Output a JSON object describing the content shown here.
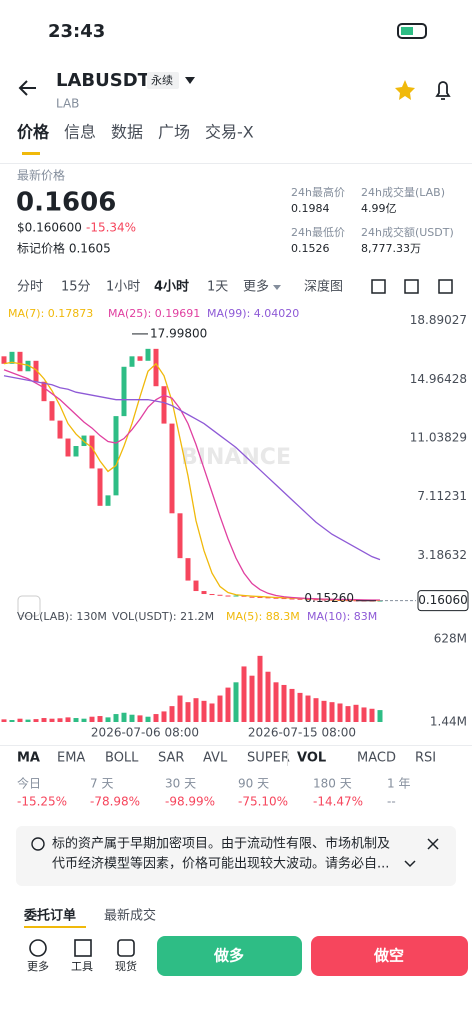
{
  "status": {
    "time": "23:43"
  },
  "header": {
    "symbol": "LABUSDT",
    "tag": "永续",
    "base": "LAB"
  },
  "tabs": [
    "价格",
    "信息",
    "数据",
    "广场",
    "交易-X"
  ],
  "price": {
    "label": "最新价格",
    "last": "0.1606",
    "usd": "$0.160600",
    "change": "-15.34%",
    "mark_label": "标记价格 0.1605"
  },
  "stats": [
    {
      "label": "24h最高价",
      "value": "0.1984"
    },
    {
      "label": "24h成交量(LAB)",
      "value": "4.99亿"
    },
    {
      "label": "24h最低价",
      "value": "0.1526"
    },
    {
      "label": "24h成交额(USDT)",
      "value": "8,777.33万"
    }
  ],
  "intervals": [
    "分时",
    "15分",
    "1小时",
    "4小时",
    "1天",
    "更多",
    "深度图"
  ],
  "chart_data": {
    "type": "candlestick",
    "watermark": "BINANCE",
    "open": [
      16.5,
      16.0,
      16.8,
      15.5,
      16.2,
      14.8,
      13.5,
      12.2,
      11.0,
      9.8,
      10.5,
      11.2,
      9.0,
      6.5,
      7.2,
      12.5,
      15.8,
      16.5,
      16.2,
      17.0,
      14.5,
      12.0,
      6.0,
      3.0,
      1.5,
      0.8,
      0.6,
      0.55,
      0.5,
      0.45,
      0.5,
      0.42,
      0.4,
      0.38,
      0.35,
      0.33,
      0.3,
      0.28,
      0.27,
      0.25,
      0.24,
      0.22,
      0.2,
      0.19,
      0.18,
      0.17,
      0.165,
      0.16
    ],
    "close": [
      16.0,
      16.8,
      15.5,
      16.2,
      14.8,
      13.5,
      12.2,
      11.0,
      9.8,
      10.5,
      11.2,
      9.0,
      6.5,
      7.2,
      12.5,
      15.8,
      16.5,
      16.2,
      17.0,
      14.5,
      12.0,
      6.0,
      3.0,
      1.5,
      0.8,
      0.6,
      0.55,
      0.5,
      0.45,
      0.5,
      0.42,
      0.4,
      0.38,
      0.35,
      0.33,
      0.3,
      0.28,
      0.27,
      0.25,
      0.24,
      0.22,
      0.2,
      0.19,
      0.18,
      0.17,
      0.165,
      0.16,
      0.1606
    ],
    "up_color": "#2ebd85",
    "down_color": "#f6465d",
    "series": [
      {
        "name": "MA(7): 0.17873",
        "color": "#f0b90b",
        "values": [
          16,
          16.1,
          16,
          15.9,
          15.6,
          15,
          14.2,
          13.2,
          12,
          11.3,
          10.8,
          10.4,
          9.5,
          8.8,
          9.2,
          10.5,
          12,
          13.8,
          15.5,
          16,
          15.2,
          13.5,
          11,
          8.5,
          5.5,
          3.5,
          2,
          1.1,
          0.7,
          0.55,
          0.5,
          0.46,
          0.43,
          0.4,
          0.37,
          0.35,
          0.33,
          0.31,
          0.29,
          0.27,
          0.25,
          0.23,
          0.21,
          0.2,
          0.19,
          0.18,
          0.17,
          0.17
        ]
      },
      {
        "name": "MA(25): 0.19691",
        "color": "#e040a0",
        "values": [
          15.6,
          15.4,
          15.2,
          15,
          14.7,
          14.4,
          14,
          13.6,
          13.1,
          12.6,
          12.1,
          11.7,
          11.2,
          10.8,
          10.7,
          11,
          11.6,
          12.3,
          13.1,
          13.6,
          13.9,
          13.7,
          13,
          12,
          10.6,
          9,
          7.4,
          5.8,
          4.3,
          3,
          2,
          1.3,
          0.9,
          0.65,
          0.5,
          0.42,
          0.37,
          0.33,
          0.3,
          0.28,
          0.26,
          0.25,
          0.24,
          0.23,
          0.22,
          0.21,
          0.2,
          0.2
        ]
      },
      {
        "name": "MA(99): 4.04020",
        "color": "#8e5ad6",
        "values": [
          15.2,
          15.1,
          15,
          14.9,
          14.8,
          14.7,
          14.6,
          14.4,
          14.3,
          14.1,
          14,
          13.9,
          13.8,
          13.7,
          13.6,
          13.6,
          13.6,
          13.6,
          13.6,
          13.5,
          13.4,
          13.2,
          12.9,
          12.6,
          12.3,
          12,
          11.6,
          11.2,
          10.8,
          10.4,
          9.9,
          9.4,
          8.9,
          8.4,
          7.9,
          7.4,
          6.9,
          6.4,
          5.9,
          5.4,
          5,
          4.6,
          4.3,
          4,
          3.7,
          3.4,
          3.1,
          2.9
        ]
      }
    ],
    "ylim": [
      0,
      20.2
    ],
    "yticks": [
      18.89027,
      14.96428,
      11.03829,
      7.11231,
      3.18632
    ],
    "high_mark": {
      "value": 17.998,
      "label": "17.99800"
    },
    "low_mark": {
      "value": 0.1526,
      "label": "0.15260"
    },
    "last_price": {
      "value": 0.1606,
      "label": "0.16060"
    },
    "x_labels": [
      "2026-07-06 08:00",
      "2026-07-15 08:00"
    ],
    "volume": {
      "legend": [
        "VOL(LAB): 130M",
        "VOL(USDT): 21.2M",
        "MA(5): 88.3M",
        "MA(10): 83M"
      ],
      "values": [
        20,
        15,
        25,
        18,
        22,
        30,
        25,
        28,
        35,
        30,
        25,
        40,
        45,
        35,
        60,
        70,
        55,
        50,
        40,
        60,
        80,
        120,
        200,
        150,
        180,
        160,
        140,
        200,
        260,
        300,
        420,
        350,
        500,
        380,
        300,
        280,
        250,
        220,
        200,
        180,
        160,
        150,
        140,
        120,
        130,
        110,
        100,
        90
      ],
      "ylim": [
        0,
        650
      ],
      "yticks": [
        {
          "value": 628,
          "label": "628M"
        },
        {
          "value": 1.44,
          "label": "1.44M"
        }
      ]
    }
  },
  "indicators": [
    "MA",
    "EMA",
    "BOLL",
    "SAR",
    "AVL",
    "SUPER",
    "VOL",
    "MACD",
    "RSI"
  ],
  "performance": [
    {
      "label": "今日",
      "value": "-15.25%"
    },
    {
      "label": "7 天",
      "value": "-78.98%"
    },
    {
      "label": "30 天",
      "value": "-98.99%"
    },
    {
      "label": "90 天",
      "value": "-75.10%"
    },
    {
      "label": "180 天",
      "value": "-14.47%"
    },
    {
      "label": "1 年",
      "value": "--"
    }
  ],
  "notice": [
    "标的资产属于早期加密项目。由于流动性有限、市场机制及",
    "代币经济模型等因素，价格可能出现较大波动。请务必自..."
  ],
  "order_tabs": [
    "委托订单",
    "最新成交"
  ],
  "bottom": {
    "tools": [
      "更多",
      "工具",
      "现货"
    ],
    "long": "做多",
    "short": "做空"
  }
}
